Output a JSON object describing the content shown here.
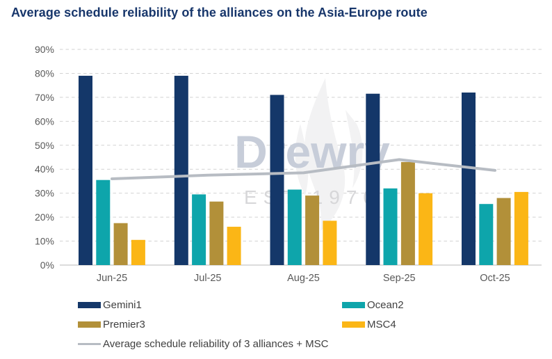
{
  "title": "Average schedule reliability of the alliances on the Asia-Europe route",
  "watermark": {
    "name": "Drewry",
    "est": "EST 1970",
    "name_color": "#c7cdd9",
    "est_color": "#d7d7d9",
    "flame_color": "#f2f2f3"
  },
  "axis": {
    "text_color": "#595959",
    "gridline_color": "#d2d2d2",
    "baseline_color": "#c6c6c6"
  },
  "chart_data": {
    "type": "bar",
    "title": "Average schedule reliability of the alliances on the Asia-Europe route",
    "xlabel": "",
    "ylabel": "",
    "categories": [
      "Jun-25",
      "Jul-25",
      "Aug-25",
      "Sep-25",
      "Oct-25"
    ],
    "series": [
      {
        "name": "Gemini1",
        "color": "#143769",
        "values": [
          79,
          79,
          71,
          71.5,
          72
        ]
      },
      {
        "name": "Ocean2",
        "color": "#0ea5ab",
        "values": [
          35.5,
          29.5,
          31.5,
          32,
          25.5
        ]
      },
      {
        "name": "Premier3",
        "color": "#b29039",
        "values": [
          17.5,
          26.5,
          29,
          43,
          28
        ]
      },
      {
        "name": "MSC4",
        "color": "#fbb616",
        "values": [
          10.5,
          16,
          18.5,
          30,
          30.5
        ]
      }
    ],
    "line_series": {
      "name": "Average schedule reliability of 3 alliances + MSC",
      "color": "#b7bcc3",
      "values": [
        36,
        37.5,
        38.5,
        44,
        39.5
      ]
    },
    "ylim": [
      0,
      90
    ],
    "ytick_step": 10,
    "yticks": [
      "0%",
      "10%",
      "20%",
      "30%",
      "40%",
      "50%",
      "60%",
      "70%",
      "80%",
      "90%"
    ],
    "grid": "dashed-horizontal",
    "legend_position": "bottom"
  }
}
